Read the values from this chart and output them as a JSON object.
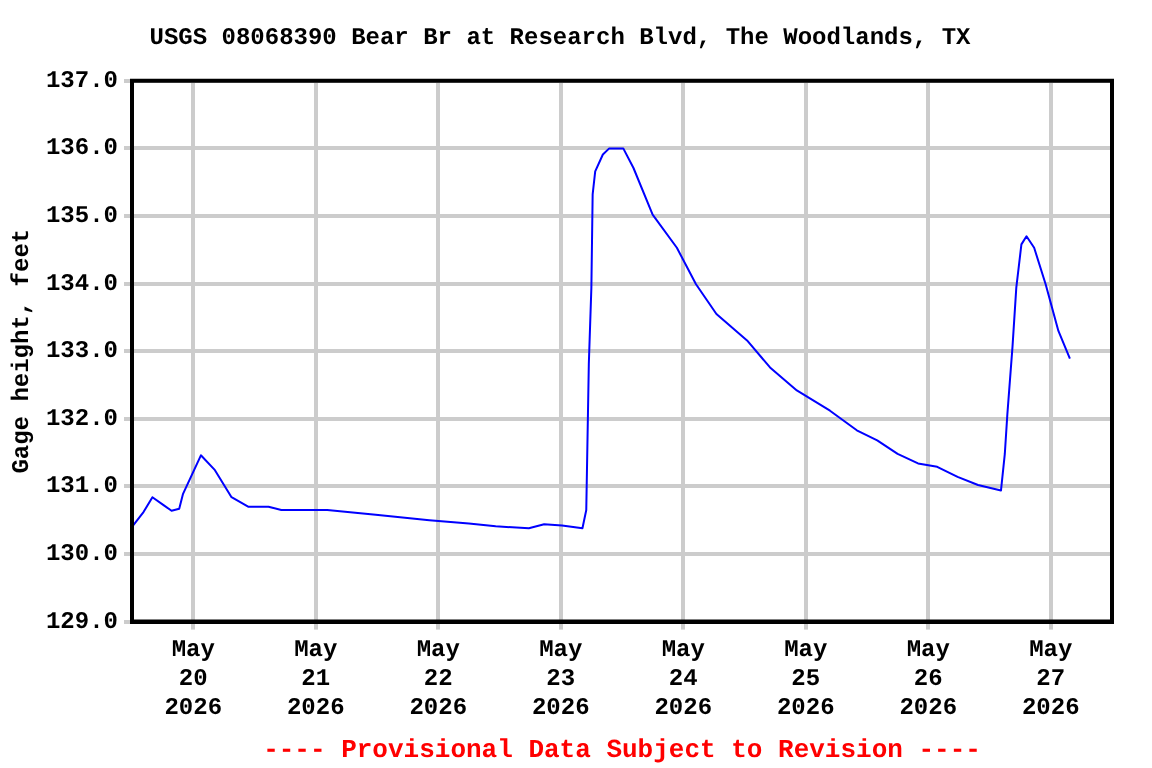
{
  "chart_data": {
    "type": "line",
    "title": "USGS 08068390 Bear Br at Research Blvd, The Woodlands, TX",
    "ylabel": "Gage height, feet",
    "annotations": [
      "---- Provisional Data Subject to Revision ----"
    ],
    "xlim": [
      "2026-05-19T12:00",
      "2026-05-27T12:00"
    ],
    "xticks": [
      {
        "value": "2026-05-20",
        "label": "May\n20\n2026"
      },
      {
        "value": "2026-05-21",
        "label": "May\n21\n2026"
      },
      {
        "value": "2026-05-22",
        "label": "May\n22\n2026"
      },
      {
        "value": "2026-05-23",
        "label": "May\n23\n2026"
      },
      {
        "value": "2026-05-24",
        "label": "May\n24\n2026"
      },
      {
        "value": "2026-05-25",
        "label": "May\n25\n2026"
      },
      {
        "value": "2026-05-26",
        "label": "May\n26\n2026"
      },
      {
        "value": "2026-05-27",
        "label": "May\n27\n2026"
      }
    ],
    "ylim": [
      129,
      137
    ],
    "yticks": [
      {
        "value": 129,
        "label": "129.0"
      },
      {
        "value": 130,
        "label": "130.0"
      },
      {
        "value": 131,
        "label": "131.0"
      },
      {
        "value": 132,
        "label": "132.0"
      },
      {
        "value": 133,
        "label": "133.0"
      },
      {
        "value": 134,
        "label": "134.0"
      },
      {
        "value": 135,
        "label": "135.0"
      },
      {
        "value": 136,
        "label": "136.0"
      },
      {
        "value": 137,
        "label": "137.0"
      }
    ],
    "grid": true,
    "legend": false,
    "marker": "none",
    "line_style": "solid",
    "x": [
      "2026-05-19T12:00",
      "2026-05-19T14:15",
      "2026-05-19T16:00",
      "2026-05-19T18:15",
      "2026-05-19T19:45",
      "2026-05-19T21:15",
      "2026-05-19T22:00",
      "2026-05-20T01:30",
      "2026-05-20T04:15",
      "2026-05-20T07:30",
      "2026-05-20T10:45",
      "2026-05-20T14:45",
      "2026-05-20T17:15",
      "2026-05-21T02:15",
      "2026-05-21T11:45",
      "2026-05-21T22:15",
      "2026-05-22T06:00",
      "2026-05-22T11:15",
      "2026-05-22T17:45",
      "2026-05-22T20:45",
      "2026-05-23T00:15",
      "2026-05-23T04:15",
      "2026-05-23T05:00",
      "2026-05-23T05:30",
      "2026-05-23T06:00",
      "2026-05-23T06:15",
      "2026-05-23T06:45",
      "2026-05-23T08:15",
      "2026-05-23T09:30",
      "2026-05-23T12:15",
      "2026-05-23T14:15",
      "2026-05-23T18:00",
      "2026-05-23T22:45",
      "2026-05-24T02:30",
      "2026-05-24T06:30",
      "2026-05-24T12:30",
      "2026-05-24T17:00",
      "2026-05-24T22:15",
      "2026-05-25T04:45",
      "2026-05-25T10:00",
      "2026-05-25T14:00",
      "2026-05-25T18:00",
      "2026-05-25T22:00",
      "2026-05-26T01:45",
      "2026-05-26T05:45",
      "2026-05-26T09:45",
      "2026-05-26T14:15",
      "2026-05-26T15:00",
      "2026-05-26T15:30",
      "2026-05-26T16:30",
      "2026-05-26T17:15",
      "2026-05-26T18:15",
      "2026-05-26T19:15",
      "2026-05-26T20:45",
      "2026-05-26T23:00",
      "2026-05-27T01:30",
      "2026-05-27T03:45"
    ],
    "series": [
      {
        "color": "#0000ff",
        "values": [
          130.4,
          130.62,
          130.84,
          130.72,
          130.64,
          130.67,
          130.89,
          131.46,
          131.24,
          130.84,
          130.7,
          130.7,
          130.65,
          130.65,
          130.58,
          130.5,
          130.45,
          130.41,
          130.38,
          130.44,
          130.42,
          130.38,
          130.65,
          132.81,
          133.94,
          135.32,
          135.66,
          135.91,
          136.0,
          136.0,
          135.71,
          135.02,
          134.53,
          133.99,
          133.55,
          133.16,
          132.76,
          132.42,
          132.12,
          131.83,
          131.68,
          131.48,
          131.34,
          131.29,
          131.14,
          131.02,
          130.94,
          131.48,
          132.07,
          133.06,
          133.94,
          134.58,
          134.7,
          134.53,
          133.99,
          133.3,
          132.89
        ]
      }
    ]
  }
}
